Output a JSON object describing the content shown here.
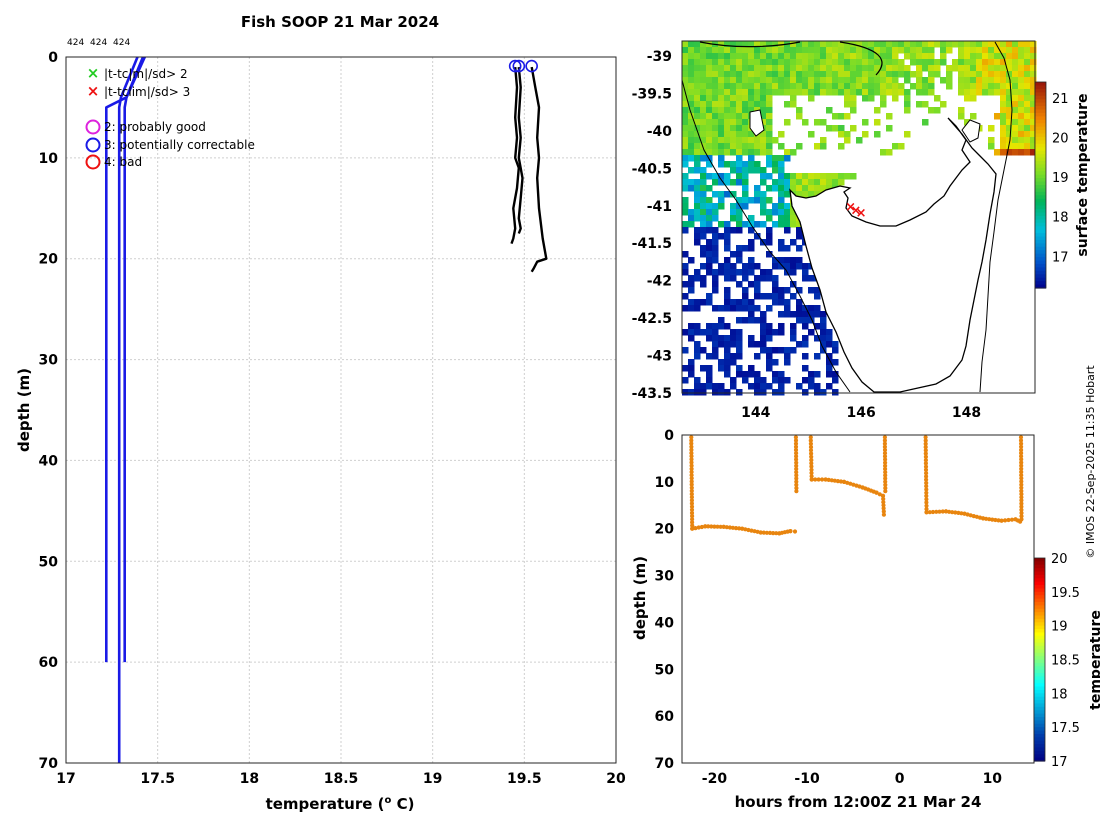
{
  "title": "Fish SOOP 21 Mar 2024",
  "credit": "© IMOS 22-Sep-2025 11:35 Hobart",
  "chart_data": [
    {
      "id": "profile",
      "type": "line",
      "xlabel_main": "temperature (",
      "xlabel_sup": "o",
      "xlabel_end": " C)",
      "ylabel": "depth (m)",
      "xlim": [
        17,
        20
      ],
      "ylim": [
        0,
        70
      ],
      "y_reversed": true,
      "xticks": [
        17,
        17.5,
        18,
        18.5,
        19,
        19.5,
        20
      ],
      "yticks": [
        0,
        10,
        20,
        30,
        40,
        50,
        60,
        70
      ],
      "grid": true,
      "top_labels": [
        "424",
        "424",
        "424"
      ],
      "legend": [
        {
          "marker": "x",
          "color": "#22cc22",
          "label": "|t-tc|m|/sd> 2"
        },
        {
          "marker": "x",
          "color": "#ee1111",
          "label": "|t-tclim|/sd> 3"
        },
        {
          "marker": "o",
          "color": "#dd22dd",
          "label": "2: probably good"
        },
        {
          "marker": "o",
          "color": "#1a1ae6",
          "label": "3: potentially correctable"
        },
        {
          "marker": "o",
          "color": "#ee1111",
          "label": "4: bad"
        }
      ],
      "series": [
        {
          "name": "climatology-1",
          "color": "#1a1ae6",
          "x": [
            17.42,
            17.33,
            17.22,
            17.22
          ],
          "y": [
            0,
            4,
            5,
            60
          ]
        },
        {
          "name": "climatology-2",
          "color": "#1a1ae6",
          "x": [
            17.39,
            17.3,
            17.29,
            17.29
          ],
          "y": [
            0,
            4,
            5,
            70
          ]
        },
        {
          "name": "climatology-3",
          "color": "#1a1ae6",
          "x": [
            17.43,
            17.33,
            17.32,
            17.32
          ],
          "y": [
            0,
            4,
            5,
            60
          ]
        },
        {
          "name": "profile-1",
          "color": "#000000",
          "x": [
            19.45,
            19.46,
            19.45,
            19.46,
            19.45,
            19.47,
            19.46,
            19.44,
            19.45,
            19.44,
            19.43
          ],
          "y": [
            1,
            3,
            6,
            8,
            10,
            11,
            13,
            15,
            17,
            18,
            18.5
          ]
        },
        {
          "name": "profile-2",
          "color": "#000000",
          "x": [
            19.47,
            19.48,
            19.47,
            19.48,
            19.47,
            19.49,
            19.48,
            19.47,
            19.48,
            19.47
          ],
          "y": [
            1,
            3,
            6,
            8,
            10,
            12,
            14,
            16,
            17,
            17.5
          ]
        },
        {
          "name": "profile-3",
          "color": "#000000",
          "x": [
            19.54,
            19.56,
            19.58,
            19.57,
            19.58,
            19.57,
            19.58,
            19.6,
            19.62,
            19.57,
            19.55,
            19.54
          ],
          "y": [
            1,
            3,
            5,
            8,
            10,
            12,
            15,
            18,
            20,
            20.3,
            21,
            21.3
          ]
        }
      ],
      "qc_circles": [
        {
          "x": 19.45,
          "y": 0.9,
          "color": "#1a1ae6"
        },
        {
          "x": 19.47,
          "y": 0.9,
          "color": "#1a1ae6"
        },
        {
          "x": 19.54,
          "y": 0.9,
          "color": "#1a1ae6"
        }
      ]
    },
    {
      "id": "sst-map",
      "type": "heatmap",
      "xticks": [
        144,
        146,
        148
      ],
      "yticks": [
        -39,
        -39.5,
        -40,
        -40.5,
        -41,
        -41.5,
        -42,
        -42.5,
        -43,
        -43.5
      ],
      "xlim": [
        142.6,
        149.3
      ],
      "ylim": [
        -43.5,
        -38.8
      ],
      "colorbar_label": "surface temperature",
      "colorbar_ticks": [
        17,
        18,
        19,
        20,
        21
      ],
      "colorbar_range": [
        16.2,
        21.4
      ],
      "markers": [
        {
          "lon": 145.8,
          "lat": -41.0,
          "color": "#ee1111"
        },
        {
          "lon": 145.9,
          "lat": -41.05,
          "color": "#ee1111"
        },
        {
          "lon": 146.0,
          "lat": -41.08,
          "color": "#ee1111"
        }
      ]
    },
    {
      "id": "depth-time",
      "type": "scatter",
      "xlabel": "hours from 12:00Z 21 Mar 24",
      "ylabel": "depth (m)",
      "xlim": [
        -23.5,
        14.5
      ],
      "ylim": [
        0,
        70
      ],
      "y_reversed": true,
      "xticks": [
        -20,
        -10,
        0,
        10
      ],
      "yticks": [
        0,
        10,
        20,
        30,
        40,
        50,
        60,
        70
      ],
      "colorbar_label": "temperature",
      "colorbar_ticks": [
        17,
        17.5,
        18,
        18.5,
        19,
        19.5,
        20
      ],
      "colorbar_range": [
        17,
        20
      ],
      "point_color": "#e8850f",
      "segments": [
        {
          "x": [
            -22.5,
            -22.4,
            -21.0,
            -19.0,
            -17.0,
            -15.0,
            -13.0,
            -11.8,
            -11.3
          ],
          "y": [
            0.5,
            20,
            19.5,
            19.6,
            20,
            20.8,
            21,
            20.5,
            20.6
          ]
        },
        {
          "x": [
            -11.2,
            -11.15
          ],
          "y": [
            0.5,
            12
          ]
        },
        {
          "x": [
            -9.6,
            -9.5,
            -8.0,
            -6.0,
            -4.0,
            -2.5,
            -1.8,
            -1.7
          ],
          "y": [
            0.5,
            9.5,
            9.5,
            10.0,
            11.2,
            12.3,
            13.0,
            17
          ]
        },
        {
          "x": [
            -1.6,
            -1.55
          ],
          "y": [
            0.5,
            12
          ]
        },
        {
          "x": [
            2.8,
            2.9,
            5.0,
            7.0,
            9.0,
            11.0,
            12.5,
            13.0
          ],
          "y": [
            0.5,
            16.5,
            16.3,
            16.8,
            17.8,
            18.3,
            18.0,
            18.5
          ]
        },
        {
          "x": [
            13.1,
            13.15
          ],
          "y": [
            0.5,
            18
          ]
        }
      ]
    }
  ]
}
